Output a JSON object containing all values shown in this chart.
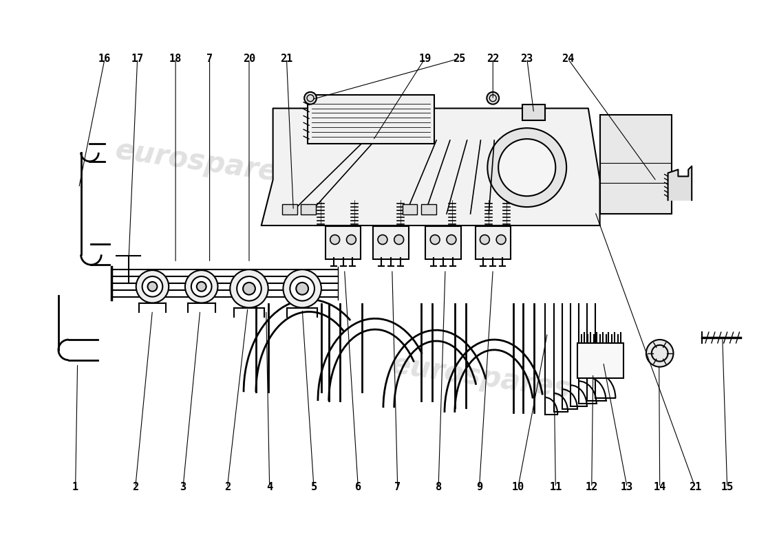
{
  "background_color": "#ffffff",
  "line_color": "#000000",
  "label_fontsize": 11,
  "top_labels": [
    [
      "1",
      105,
      88,
      108,
      270
    ],
    [
      "2",
      193,
      88,
      218,
      348
    ],
    [
      "3",
      263,
      88,
      288,
      348
    ],
    [
      "2",
      328,
      88,
      358,
      352
    ],
    [
      "4",
      390,
      88,
      385,
      348
    ],
    [
      "5",
      455,
      88,
      438,
      350
    ],
    [
      "6",
      520,
      88,
      500,
      408
    ],
    [
      "7",
      578,
      88,
      570,
      408
    ],
    [
      "8",
      638,
      88,
      648,
      408
    ],
    [
      "9",
      698,
      88,
      718,
      408
    ],
    [
      "10",
      755,
      88,
      798,
      315
    ],
    [
      "11",
      810,
      88,
      808,
      235
    ],
    [
      "12",
      863,
      88,
      865,
      255
    ],
    [
      "13",
      915,
      88,
      880,
      272
    ],
    [
      "14",
      963,
      88,
      962,
      268
    ],
    [
      "21",
      1015,
      88,
      868,
      493
    ],
    [
      "15",
      1062,
      88,
      1055,
      308
    ]
  ],
  "bottom_labels": [
    [
      "16",
      148,
      718,
      110,
      528
    ],
    [
      "17",
      196,
      718,
      183,
      418
    ],
    [
      "18",
      252,
      718,
      252,
      418
    ],
    [
      "7",
      302,
      718,
      302,
      418
    ],
    [
      "20",
      360,
      718,
      360,
      418
    ],
    [
      "21",
      415,
      718,
      425,
      495
    ],
    [
      "19",
      618,
      718,
      542,
      598
    ],
    [
      "25",
      668,
      718,
      452,
      658
    ],
    [
      "22",
      718,
      718,
      718,
      658
    ],
    [
      "23",
      768,
      718,
      778,
      638
    ],
    [
      "24",
      828,
      718,
      958,
      538
    ]
  ]
}
